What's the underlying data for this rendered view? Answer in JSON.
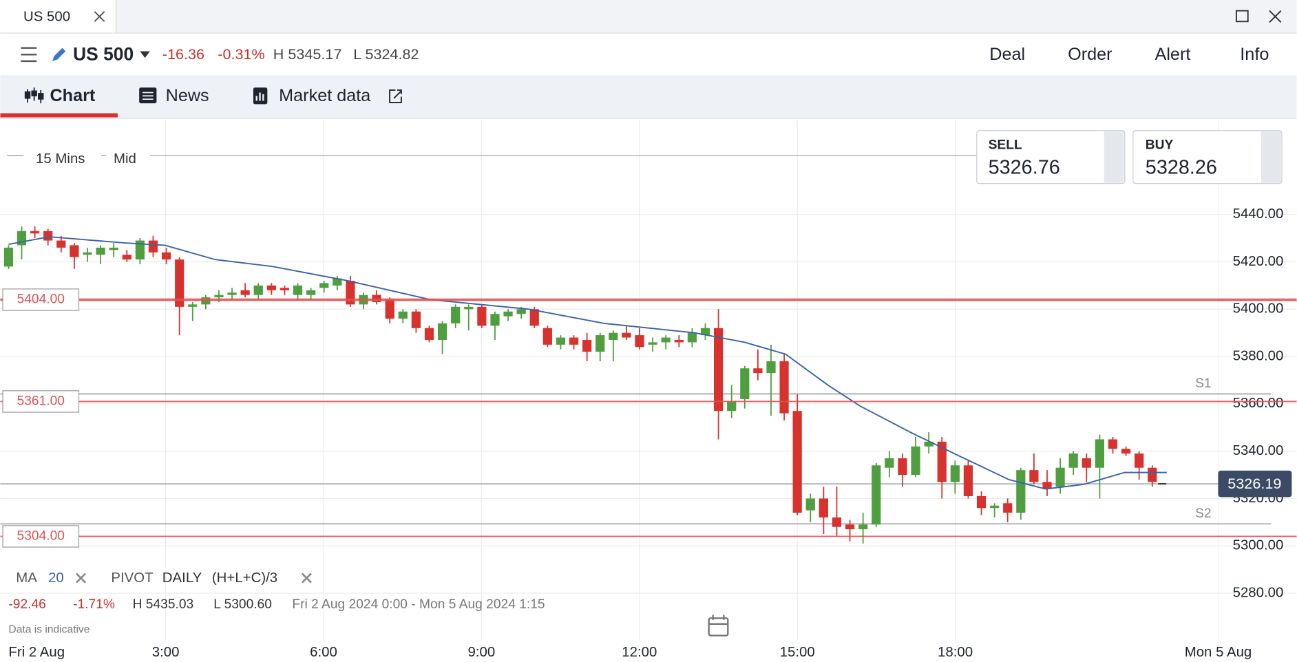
{
  "window": {
    "tab": "US 500"
  },
  "toolbar": {
    "instrument": "US 500",
    "change": "-16.36",
    "change_pct": "-0.31%",
    "high": "H 5345.17",
    "low": "L 5324.82",
    "actions": [
      "Deal",
      "Order",
      "Alert",
      "Info"
    ]
  },
  "tabs": [
    "Chart",
    "News",
    "Market data"
  ],
  "chart_data": {
    "type": "candlestick",
    "interval": "15 Mins",
    "price_type": "Mid",
    "sell": {
      "label": "SELL",
      "price": "5326.76"
    },
    "buy": {
      "label": "BUY",
      "price": "5328.26"
    },
    "ylim": [
      5260,
      5480
    ],
    "yticks": [
      {
        "value": 5280,
        "label": "5280.00"
      },
      {
        "value": 5300,
        "label": "5300.00"
      },
      {
        "value": 5320,
        "label": "5320.00"
      },
      {
        "value": 5340,
        "label": "5340.00"
      },
      {
        "value": 5360,
        "label": "5360.00"
      },
      {
        "value": 5380,
        "label": "5380.00"
      },
      {
        "value": 5400,
        "label": "5400.00"
      },
      {
        "value": 5420,
        "label": "5420.00"
      },
      {
        "value": 5440,
        "label": "5440.00"
      }
    ],
    "grid": true,
    "x_labels": [
      "Fri 2 Aug",
      "3:00",
      "6:00",
      "9:00",
      "12:00",
      "15:00",
      "18:00",
      "Mon 5 Aug"
    ],
    "up_color": "#4f9e3f",
    "down_color": "#d7322d",
    "ohlc": [
      [
        5418,
        5427,
        5417,
        5426
      ],
      [
        5427,
        5435,
        5421,
        5433
      ],
      [
        5433,
        5435,
        5430,
        5432
      ],
      [
        5433,
        5434,
        5427,
        5429
      ],
      [
        5429,
        5431,
        5424,
        5426
      ],
      [
        5427,
        5428,
        5417,
        5422
      ],
      [
        5423,
        5426,
        5420,
        5424
      ],
      [
        5423,
        5427,
        5419,
        5426
      ],
      [
        5425,
        5428,
        5422,
        5426
      ],
      [
        5423,
        5425,
        5420,
        5421
      ],
      [
        5421,
        5430,
        5419,
        5429
      ],
      [
        5429,
        5431,
        5422,
        5424
      ],
      [
        5424,
        5426,
        5419,
        5421
      ],
      [
        5421,
        5422,
        5389,
        5401
      ],
      [
        5401,
        5403,
        5395,
        5402
      ],
      [
        5402,
        5406,
        5400,
        5405
      ],
      [
        5405,
        5408,
        5403,
        5406
      ],
      [
        5406,
        5409,
        5404,
        5407
      ],
      [
        5408,
        5411,
        5405,
        5406
      ],
      [
        5406,
        5411,
        5404,
        5410
      ],
      [
        5410,
        5411,
        5406,
        5408
      ],
      [
        5409,
        5410,
        5406,
        5408
      ],
      [
        5406,
        5411,
        5404,
        5410
      ],
      [
        5406,
        5409,
        5404,
        5408
      ],
      [
        5409,
        5412,
        5407,
        5411
      ],
      [
        5410,
        5414,
        5408,
        5413
      ],
      [
        5412,
        5414,
        5401,
        5402
      ],
      [
        5402,
        5407,
        5400,
        5406
      ],
      [
        5406,
        5408,
        5402,
        5403
      ],
      [
        5404,
        5405,
        5394,
        5396
      ],
      [
        5396,
        5400,
        5394,
        5399
      ],
      [
        5399,
        5400,
        5390,
        5392
      ],
      [
        5392,
        5393,
        5386,
        5387
      ],
      [
        5387,
        5395,
        5381,
        5394
      ],
      [
        5394,
        5402,
        5392,
        5401
      ],
      [
        5400,
        5402,
        5391,
        5401
      ],
      [
        5401,
        5402,
        5392,
        5393
      ],
      [
        5393,
        5399,
        5387,
        5398
      ],
      [
        5397,
        5400,
        5395,
        5399
      ],
      [
        5398,
        5401,
        5396,
        5400
      ],
      [
        5400,
        5401,
        5392,
        5393
      ],
      [
        5392,
        5393,
        5384,
        5385
      ],
      [
        5385,
        5389,
        5383,
        5388
      ],
      [
        5388,
        5389,
        5383,
        5385
      ],
      [
        5387,
        5390,
        5378,
        5382
      ],
      [
        5382,
        5390,
        5378,
        5389
      ],
      [
        5387,
        5391,
        5378,
        5390
      ],
      [
        5390,
        5393,
        5387,
        5388
      ],
      [
        5389,
        5392,
        5383,
        5384
      ],
      [
        5385,
        5388,
        5382,
        5386
      ],
      [
        5386,
        5389,
        5383,
        5388
      ],
      [
        5387,
        5389,
        5384,
        5386
      ],
      [
        5386,
        5392,
        5384,
        5390
      ],
      [
        5389,
        5394,
        5387,
        5392
      ],
      [
        5392,
        5400,
        5345,
        5357
      ],
      [
        5357,
        5368,
        5354,
        5361
      ],
      [
        5362,
        5376,
        5358,
        5375
      ],
      [
        5375,
        5383,
        5370,
        5373
      ],
      [
        5373,
        5385,
        5355,
        5378
      ],
      [
        5378,
        5381,
        5353,
        5356
      ],
      [
        5357,
        5364,
        5313,
        5314
      ],
      [
        5315,
        5322,
        5310,
        5320
      ],
      [
        5320,
        5325,
        5305,
        5312
      ],
      [
        5312,
        5325,
        5304,
        5308
      ],
      [
        5309,
        5311,
        5302,
        5307
      ],
      [
        5307,
        5314,
        5301,
        5309
      ],
      [
        5309,
        5335,
        5308,
        5334
      ],
      [
        5333,
        5340,
        5329,
        5337
      ],
      [
        5337,
        5339,
        5325,
        5330
      ],
      [
        5330,
        5346,
        5329,
        5342
      ],
      [
        5342,
        5348,
        5339,
        5344
      ],
      [
        5344,
        5346,
        5320,
        5327
      ],
      [
        5327,
        5336,
        5322,
        5334
      ],
      [
        5334,
        5336,
        5320,
        5321
      ],
      [
        5321,
        5323,
        5313,
        5316
      ],
      [
        5316,
        5318,
        5312,
        5317
      ],
      [
        5318,
        5320,
        5310,
        5314
      ],
      [
        5314,
        5333,
        5311,
        5332
      ],
      [
        5332,
        5339,
        5326,
        5327
      ],
      [
        5327,
        5332,
        5321,
        5324
      ],
      [
        5325,
        5337,
        5322,
        5333
      ],
      [
        5333,
        5340,
        5330,
        5339
      ],
      [
        5337,
        5339,
        5327,
        5333
      ],
      [
        5333,
        5347,
        5320,
        5345
      ],
      [
        5345,
        5346,
        5339,
        5341
      ],
      [
        5341,
        5342,
        5338,
        5339
      ],
      [
        5339,
        5340,
        5328,
        5333
      ],
      [
        5333,
        5334,
        5325,
        5327
      ]
    ],
    "moving_average": {
      "name": "MA",
      "period": "20",
      "color": "#3a64a8",
      "x": [
        0,
        3.1,
        8.8,
        11.9,
        15.7,
        20.1,
        25.8,
        32.1,
        39.6,
        45.3,
        52.2,
        56,
        59.1,
        62.3,
        64.8,
        68.6,
        72.3,
        76.1,
        78.9,
        81.8,
        84.9,
        88.1
      ],
      "values": [
        5427.4,
        5430.6,
        5428,
        5427,
        5421,
        5418,
        5412,
        5404,
        5400,
        5394,
        5390,
        5386,
        5381,
        5368,
        5359,
        5348,
        5338,
        5328,
        5324,
        5326,
        5331,
        5331
      ]
    },
    "levels": [
      {
        "value": 5404,
        "label": "5404.00"
      },
      {
        "value": 5361,
        "label": "5361.00"
      },
      {
        "value": 5304,
        "label": "5304.00"
      }
    ],
    "pivots": {
      "name": "PIVOT",
      "period": "DAILY",
      "formula": "(H+L+C)/3",
      "levels": [
        {
          "name": "S1",
          "value": 5364.2
        },
        {
          "name": "S2",
          "value": 5309.3
        }
      ]
    },
    "last_price": {
      "value": 5326.19,
      "label": "5326.19"
    }
  },
  "stats": {
    "change": "-92.46",
    "change_pct": "-1.71%",
    "high": "H 5435.03",
    "low": "L 5300.60",
    "range": "Fri 2 Aug 2024 0:00 - Mon 5 Aug 2024 1:15"
  },
  "note": "Data is indicative"
}
